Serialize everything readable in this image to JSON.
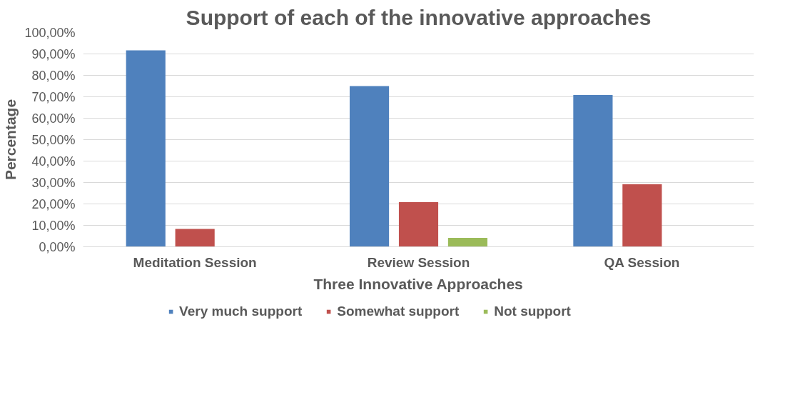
{
  "chart_data": {
    "type": "bar",
    "title": "Support of each of the innovative approaches",
    "xlabel": "Three Innovative Approaches",
    "ylabel": "Percentage",
    "categories": [
      "Meditation Session",
      "Review Session",
      "QA Session"
    ],
    "series": [
      {
        "name": "Very much support",
        "color": "#4f81bd",
        "values": [
          91.7,
          75,
          70.8
        ]
      },
      {
        "name": "Somewhat support",
        "color": "#c0504d",
        "values": [
          8.3,
          20.8,
          29.2
        ]
      },
      {
        "name": "Not support",
        "color": "#9bbb59",
        "values": [
          0,
          4.2,
          0
        ]
      }
    ],
    "ylim": [
      0,
      100
    ],
    "yticks": [
      {
        "value": 0,
        "label": "0,00%"
      },
      {
        "value": 10,
        "label": "10,00%"
      },
      {
        "value": 20,
        "label": "20,00%"
      },
      {
        "value": 30,
        "label": "30,00%"
      },
      {
        "value": 40,
        "label": "40,00%"
      },
      {
        "value": 50,
        "label": "50,00%"
      },
      {
        "value": 60,
        "label": "60,00%"
      },
      {
        "value": 70,
        "label": "70,00%"
      },
      {
        "value": 80,
        "label": "80,00%"
      },
      {
        "value": 90,
        "label": "90,00%"
      },
      {
        "value": 100,
        "label": "100,00%"
      }
    ],
    "grid": "y",
    "legend": "bottom"
  }
}
